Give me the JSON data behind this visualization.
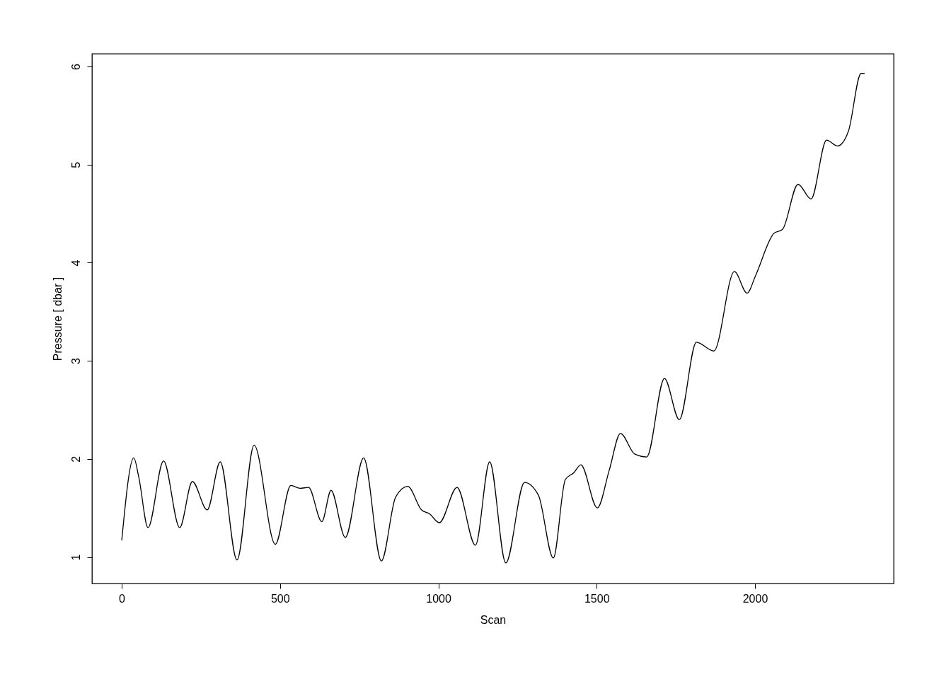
{
  "chart_data": {
    "type": "line",
    "xlabel": "Scan",
    "ylabel": "Pressure [ dbar ]",
    "xlim": [
      -94,
      2438
    ],
    "ylim": [
      0.73,
      6.13
    ],
    "xticks": [
      0,
      500,
      1000,
      1500,
      2000
    ],
    "yticks": [
      1,
      2,
      3,
      4,
      5,
      6
    ],
    "grid": false,
    "legend": false,
    "marker": "none",
    "line_style": "solid",
    "x": [
      0,
      38,
      54,
      83,
      132,
      183,
      223,
      270,
      311,
      364,
      418,
      485,
      534,
      563,
      590,
      632,
      661,
      706,
      764,
      820,
      865,
      903,
      947,
      972,
      1003,
      1059,
      1117,
      1162,
      1213,
      1272,
      1316,
      1363,
      1401,
      1428,
      1450,
      1502,
      1540,
      1575,
      1620,
      1658,
      1714,
      1761,
      1815,
      1870,
      1935,
      1975,
      2002,
      2060,
      2087,
      2136,
      2177,
      2226,
      2261,
      2295,
      2335,
      2346
    ],
    "series": [
      {
        "color": "#000000",
        "values": [
          1.17,
          2.01,
          1.81,
          1.3,
          1.98,
          1.3,
          1.77,
          1.48,
          1.97,
          0.97,
          2.14,
          1.13,
          1.73,
          1.7,
          1.71,
          1.36,
          1.68,
          1.2,
          2.01,
          0.96,
          1.61,
          1.72,
          1.48,
          1.44,
          1.35,
          1.71,
          1.12,
          1.97,
          0.94,
          1.76,
          1.63,
          0.99,
          1.79,
          1.86,
          1.94,
          1.5,
          1.89,
          2.26,
          2.05,
          2.02,
          2.82,
          2.4,
          3.19,
          3.1,
          3.91,
          3.69,
          3.87,
          4.3,
          4.34,
          4.8,
          4.65,
          5.25,
          5.19,
          5.34,
          5.93,
          5.93
        ]
      }
    ]
  }
}
